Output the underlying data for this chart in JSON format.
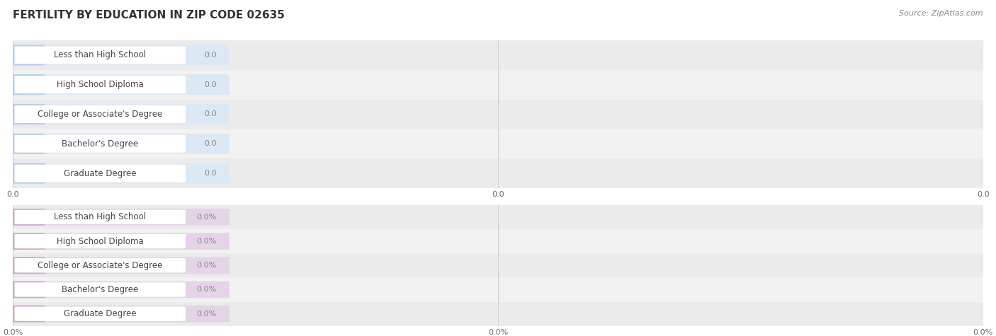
{
  "title": "FERTILITY BY EDUCATION IN ZIP CODE 02635",
  "source": "Source: ZipAtlas.com",
  "categories": [
    "Less than High School",
    "High School Diploma",
    "College or Associate's Degree",
    "Bachelor's Degree",
    "Graduate Degree"
  ],
  "top_values": [
    0.0,
    0.0,
    0.0,
    0.0,
    0.0
  ],
  "bottom_values": [
    0.0,
    0.0,
    0.0,
    0.0,
    0.0
  ],
  "top_bar_color": "#b8cfe8",
  "top_bar_bg": "#dce9f5",
  "bottom_bar_color": "#c9aacb",
  "bottom_bar_bg": "#e5d3e7",
  "label_bg_color": "#ffffff",
  "row_bg_even": "#ebebeb",
  "row_bg_odd": "#f2f2f2",
  "top_xlabel_vals": [
    "0.0",
    "0.0",
    "0.0"
  ],
  "bottom_xlabel_vals": [
    "0.0%",
    "0.0%",
    "0.0%"
  ],
  "bar_value_label_top": [
    "0.0",
    "0.0",
    "0.0",
    "0.0",
    "0.0"
  ],
  "bar_value_label_bottom": [
    "0.0%",
    "0.0%",
    "0.0%",
    "0.0%",
    "0.0%"
  ],
  "title_fontsize": 11,
  "source_fontsize": 8,
  "label_fontsize": 8.5,
  "value_fontsize": 8,
  "axis_fontsize": 8,
  "fig_bg_color": "#ffffff",
  "grid_color": "#d0d0d0",
  "text_color": "#555555",
  "value_text_color": "#888888"
}
